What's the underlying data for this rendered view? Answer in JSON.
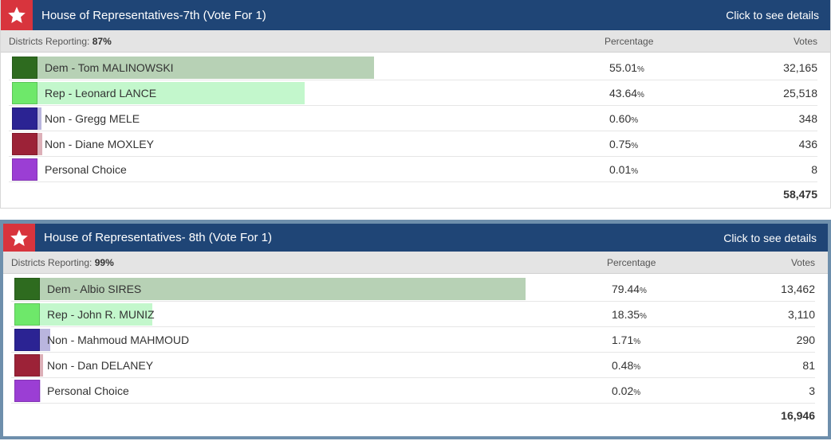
{
  "races": [
    {
      "title": "House of Representatives-7th (Vote For 1)",
      "details_label": "Click to see details",
      "reporting_label": "Districts Reporting:",
      "reporting_value": "87%",
      "percentage_header": "Percentage",
      "votes_header": "Votes",
      "total_votes": "58,475",
      "candidates": [
        {
          "name": "Dem - Tom MALINOWSKI",
          "pct": "55.01",
          "pct_value": 55.01,
          "votes": "32,165",
          "swatch": "#2e6b1f",
          "bar": "#b7d1b5"
        },
        {
          "name": "Rep - Leonard LANCE",
          "pct": "43.64",
          "pct_value": 43.64,
          "votes": "25,518",
          "swatch": "#6ee86a",
          "bar": "#c3f7cc"
        },
        {
          "name": "Non - Gregg MELE",
          "pct": "0.60",
          "pct_value": 0.6,
          "votes": "348",
          "swatch": "#2b2393",
          "bar": "#b9b5de"
        },
        {
          "name": "Non - Diane MOXLEY",
          "pct": "0.75",
          "pct_value": 0.75,
          "votes": "436",
          "swatch": "#9c2237",
          "bar": "#ddb0b8"
        },
        {
          "name": "Personal Choice",
          "pct": "0.01",
          "pct_value": 0.01,
          "votes": "8",
          "swatch": "#9b3ed4",
          "bar": "#dcc2ef"
        }
      ]
    },
    {
      "title": "House of Representatives- 8th (Vote For 1)",
      "details_label": "Click to see details",
      "reporting_label": "Districts Reporting:",
      "reporting_value": "99%",
      "percentage_header": "Percentage",
      "votes_header": "Votes",
      "total_votes": "16,946",
      "candidates": [
        {
          "name": "Dem - Albio SIRES",
          "pct": "79.44",
          "pct_value": 79.44,
          "votes": "13,462",
          "swatch": "#2e6b1f",
          "bar": "#b7d1b5"
        },
        {
          "name": "Rep - John R. MUNIZ",
          "pct": "18.35",
          "pct_value": 18.35,
          "votes": "3,110",
          "swatch": "#6ee86a",
          "bar": "#c3f7cc"
        },
        {
          "name": "Non - Mahmoud MAHMOUD",
          "pct": "1.71",
          "pct_value": 1.71,
          "votes": "290",
          "swatch": "#2b2393",
          "bar": "#b9b5de"
        },
        {
          "name": "Non - Dan DELANEY",
          "pct": "0.48",
          "pct_value": 0.48,
          "votes": "81",
          "swatch": "#9c2237",
          "bar": "#ddb0b8"
        },
        {
          "name": "Personal Choice",
          "pct": "0.02",
          "pct_value": 0.02,
          "votes": "3",
          "swatch": "#9b3ed4",
          "bar": "#dcc2ef"
        }
      ]
    }
  ],
  "pct_suffix": "%",
  "icons": {
    "header": "star-icon"
  },
  "colors": {
    "header_bg": "#1f4576",
    "star_bg": "#d8343d"
  }
}
